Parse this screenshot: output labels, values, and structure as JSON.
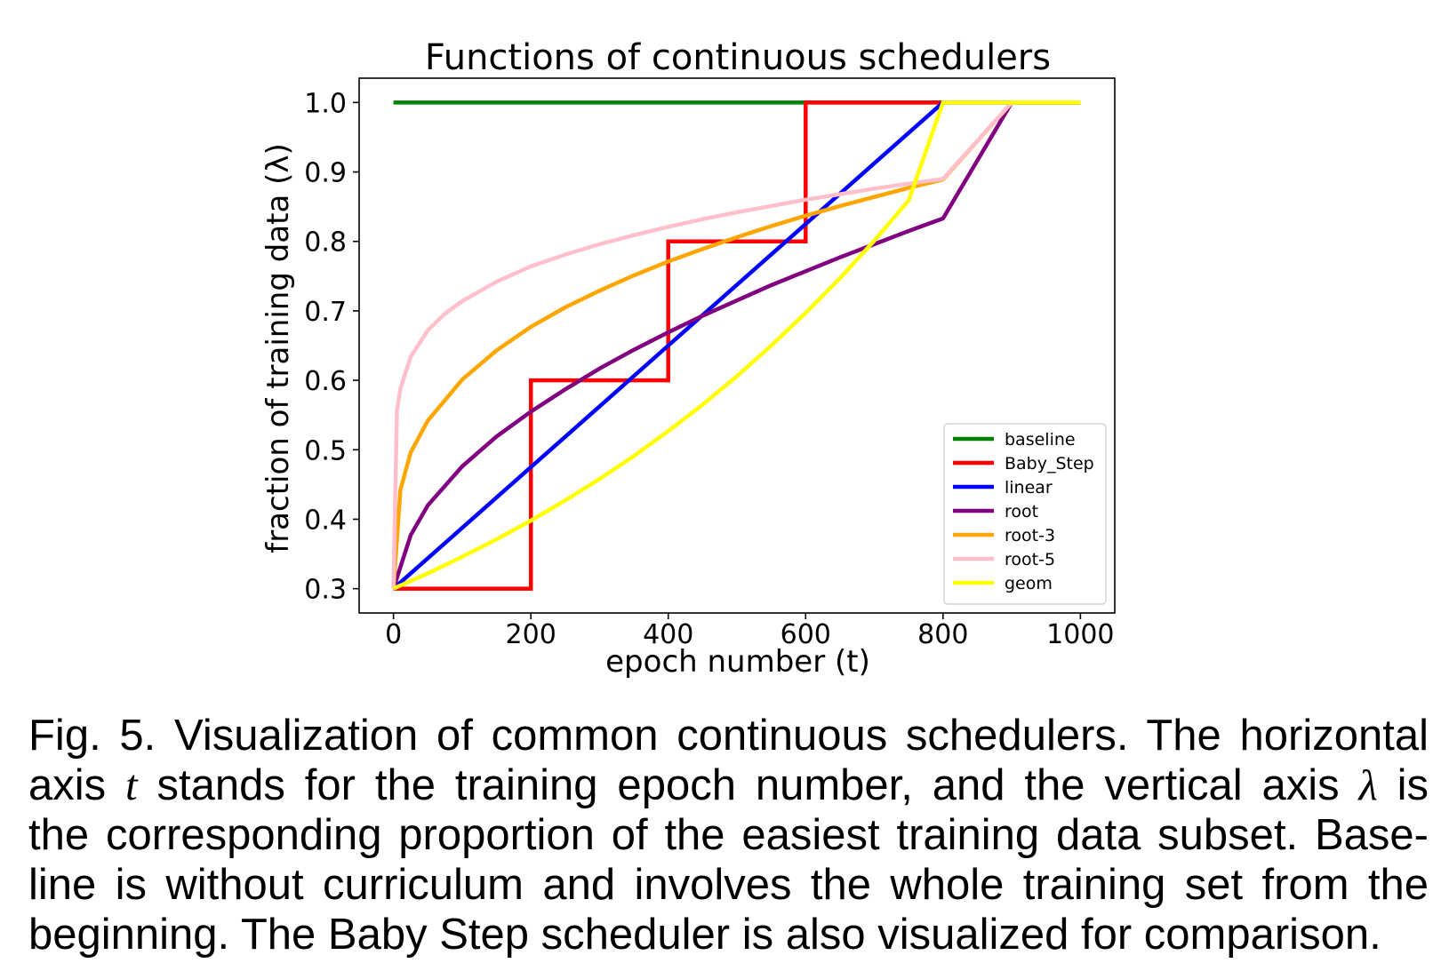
{
  "chart_data": {
    "type": "line",
    "title": "Functions of continuous schedulers",
    "xlabel": "epoch number (t)",
    "ylabel": "fraction of training data (λ)",
    "xlim": [
      -50,
      1050
    ],
    "ylim": [
      0.265,
      1.035
    ],
    "xticks": [
      0,
      200,
      400,
      600,
      800,
      1000
    ],
    "xtick_labels": [
      "0",
      "200",
      "400",
      "600",
      "800",
      "1000"
    ],
    "yticks": [
      0.3,
      0.4,
      0.5,
      0.6,
      0.7,
      0.8,
      0.9,
      1.0
    ],
    "ytick_labels": [
      "0.3",
      "0.4",
      "0.5",
      "0.6",
      "0.7",
      "0.8",
      "0.9",
      "1.0"
    ],
    "grid": false,
    "legend_position": "lower-right",
    "series": [
      {
        "name": "baseline",
        "color": "#008000",
        "x": [
          0,
          1000
        ],
        "y": [
          1.0,
          1.0
        ]
      },
      {
        "name": "Baby_Step",
        "color": "#ff0000",
        "x": [
          0,
          200,
          200,
          400,
          400,
          600,
          600,
          800
        ],
        "y": [
          0.3,
          0.3,
          0.6,
          0.6,
          0.8,
          0.8,
          1.0,
          1.0
        ]
      },
      {
        "name": "linear",
        "color": "#0000ff",
        "x": [
          0,
          100,
          200,
          300,
          400,
          500,
          600,
          700,
          800,
          900,
          1000
        ],
        "y": [
          0.3,
          0.3875,
          0.475,
          0.5625,
          0.65,
          0.7375,
          0.825,
          0.9125,
          1.0,
          1.0,
          1.0
        ]
      },
      {
        "name": "root",
        "color": "#800080",
        "x": [
          0,
          25,
          50,
          100,
          150,
          200,
          250,
          300,
          350,
          400,
          450,
          500,
          550,
          600,
          650,
          700,
          750,
          800,
          900,
          1000
        ],
        "y": [
          0.3,
          0.377,
          0.42,
          0.476,
          0.519,
          0.555,
          0.587,
          0.617,
          0.644,
          0.669,
          0.693,
          0.715,
          0.737,
          0.757,
          0.777,
          0.796,
          0.815,
          0.833,
          1.0,
          1.0
        ]
      },
      {
        "name": "root-3",
        "color": "#ffa500",
        "x": [
          0,
          10,
          25,
          50,
          100,
          150,
          200,
          250,
          300,
          350,
          400,
          450,
          500,
          550,
          600,
          650,
          700,
          750,
          800,
          900,
          1000
        ],
        "y": [
          0.3,
          0.442,
          0.496,
          0.542,
          0.601,
          0.643,
          0.677,
          0.705,
          0.729,
          0.751,
          0.771,
          0.789,
          0.806,
          0.822,
          0.837,
          0.851,
          0.864,
          0.877,
          0.889,
          1.0,
          1.0
        ]
      },
      {
        "name": "root-5",
        "color": "#ffc0cb",
        "x": [
          0,
          5,
          10,
          25,
          50,
          75,
          100,
          150,
          200,
          250,
          300,
          350,
          400,
          450,
          500,
          550,
          600,
          650,
          700,
          750,
          800,
          900,
          1000
        ],
        "y": [
          0.3,
          0.556,
          0.588,
          0.634,
          0.672,
          0.696,
          0.714,
          0.742,
          0.764,
          0.781,
          0.796,
          0.809,
          0.821,
          0.832,
          0.842,
          0.851,
          0.86,
          0.868,
          0.876,
          0.883,
          0.89,
          1.0,
          1.0
        ]
      },
      {
        "name": "geom",
        "color": "#ffff00",
        "x": [
          0,
          50,
          100,
          150,
          200,
          250,
          300,
          350,
          400,
          450,
          500,
          550,
          600,
          650,
          700,
          750,
          800,
          900,
          1000
        ],
        "y": [
          0.3,
          0.322,
          0.346,
          0.371,
          0.398,
          0.427,
          0.458,
          0.491,
          0.527,
          0.565,
          0.606,
          0.65,
          0.697,
          0.747,
          0.801,
          0.859,
          1.0,
          1.0,
          1.0
        ]
      }
    ]
  },
  "caption": {
    "lines": [
      [
        "Fig. 5. Visualization of common continuous schedulers. The horizontal"
      ],
      [
        "axis ",
        "t",
        " stands for the training epoch number, and the vertical axis ",
        "λ",
        " is"
      ],
      [
        "the corresponding proportion of the easiest training data subset. Base-"
      ],
      [
        "line is without curriculum and involves the whole training set from the"
      ],
      [
        "beginning. The Baby Step scheduler is also visualized for comparison."
      ]
    ]
  }
}
